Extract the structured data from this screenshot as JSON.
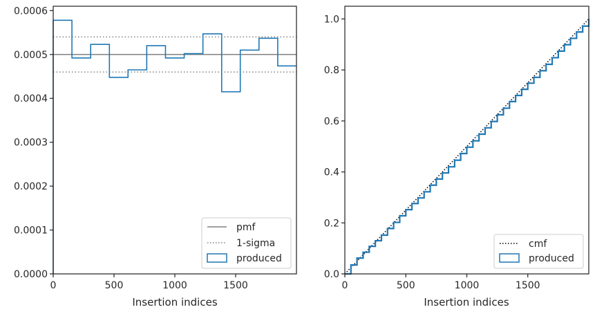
{
  "chart_data": [
    {
      "type": "line",
      "title": "",
      "xlabel": "Insertion indices",
      "ylabel": "",
      "xlim": [
        0,
        2000
      ],
      "ylim": [
        0,
        0.00061
      ],
      "xticks": [
        0,
        500,
        1000,
        1500
      ],
      "xtick_labels": [
        "0",
        "500",
        "1000",
        "1500"
      ],
      "yticks": [
        0.0,
        0.0001,
        0.0002,
        0.0003,
        0.0004,
        0.0005,
        0.0006
      ],
      "ytick_labels": [
        "0.0000",
        "0.0001",
        "0.0002",
        "0.0003",
        "0.0004",
        "0.0005",
        "0.0006"
      ],
      "grid": false,
      "legend_position": "bottom-right",
      "series": [
        {
          "name": "pmf",
          "style": "solid",
          "color": "#808080",
          "y": 0.0005
        },
        {
          "name": "1-sigma",
          "style": "dotted",
          "color": "#808080",
          "y": [
            0.00046,
            0.00054
          ]
        },
        {
          "name": "produced",
          "style": "step",
          "color": "#1f77b4",
          "bin_edges": [
            0,
            154,
            308,
            462,
            615,
            769,
            923,
            1077,
            1231,
            1385,
            1538,
            1692,
            1846,
            2000
          ],
          "values": [
            0.000578,
            0.000492,
            0.000523,
            0.000448,
            0.000465,
            0.00052,
            0.000492,
            0.000502,
            0.000547,
            0.000415,
            0.00051,
            0.000537,
            0.000474
          ]
        }
      ]
    },
    {
      "type": "line",
      "title": "",
      "xlabel": "Insertion indices",
      "ylabel": "",
      "xlim": [
        0,
        2000
      ],
      "ylim": [
        0,
        1.05
      ],
      "xticks": [
        0,
        500,
        1000,
        1500
      ],
      "xtick_labels": [
        "0",
        "500",
        "1000",
        "1500"
      ],
      "yticks": [
        0.0,
        0.2,
        0.4,
        0.6,
        0.8,
        1.0
      ],
      "ytick_labels": [
        "0.0",
        "0.2",
        "0.4",
        "0.6",
        "0.8",
        "1.0"
      ],
      "grid": false,
      "legend_position": "bottom-right",
      "series": [
        {
          "name": "cmf",
          "style": "dotted",
          "color": "#000000",
          "x": [
            0,
            2000
          ],
          "y": [
            0,
            1
          ]
        },
        {
          "name": "produced",
          "style": "step",
          "color": "#1f77b4",
          "x": [
            0,
            50,
            100,
            150,
            200,
            250,
            300,
            350,
            400,
            450,
            500,
            550,
            600,
            650,
            700,
            750,
            800,
            850,
            900,
            950,
            1000,
            1050,
            1100,
            1150,
            1200,
            1250,
            1300,
            1350,
            1400,
            1450,
            1500,
            1550,
            1600,
            1650,
            1700,
            1750,
            1800,
            1850,
            1900,
            1950,
            2000
          ],
          "y": [
            0,
            0.035,
            0.062,
            0.085,
            0.108,
            0.13,
            0.152,
            0.178,
            0.202,
            0.228,
            0.252,
            0.276,
            0.298,
            0.322,
            0.348,
            0.372,
            0.396,
            0.42,
            0.446,
            0.472,
            0.497,
            0.522,
            0.548,
            0.573,
            0.598,
            0.624,
            0.65,
            0.676,
            0.7,
            0.724,
            0.748,
            0.771,
            0.797,
            0.822,
            0.848,
            0.874,
            0.899,
            0.924,
            0.949,
            0.972,
            1.0
          ]
        }
      ]
    }
  ]
}
